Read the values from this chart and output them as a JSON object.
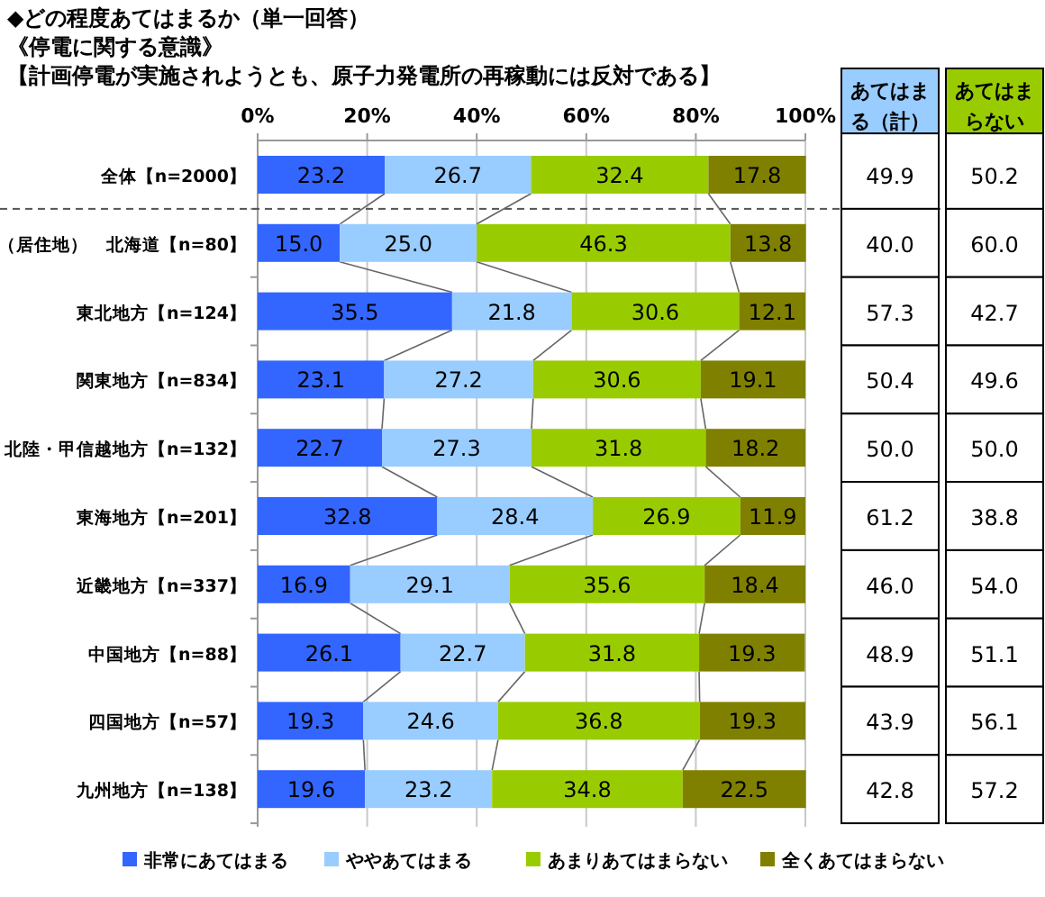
{
  "chart_data": {
    "type": "bar",
    "orientation": "horizontal",
    "stacked": true,
    "title": "◆どの程度あてはまるか（単一回答）",
    "subtitle": "《停電に関する意識》",
    "categories": [
      "全体【n=2000】",
      "（居住地）　北海道【n=80】",
      "東北地方【n=124】",
      "関東地方【n=834】",
      "北陸・甲信越地方【n=132】",
      "東海地方【n=201】",
      "近畿地方【n=337】",
      "中国地方【n=88】",
      "四国地方【n=57】",
      "九州地方【n=138】"
    ],
    "series": [
      {
        "name": "非常にあてはまる",
        "color": "#3366ff",
        "values": [
          23.2,
          15.0,
          35.5,
          23.1,
          22.7,
          32.8,
          16.9,
          26.1,
          19.3,
          19.6
        ],
        "value_labels": [
          "23.2",
          "15.0",
          "35.5",
          "23.1",
          "22.7",
          "32.8",
          "16.9",
          "26.1",
          "19.3",
          "19.6"
        ]
      },
      {
        "name": "ややあてはまる",
        "color": "#99ccff",
        "values": [
          26.7,
          25.0,
          21.8,
          27.2,
          27.3,
          28.4,
          29.1,
          22.7,
          24.6,
          23.2
        ],
        "value_labels": [
          "26.7",
          "25.0",
          "21.8",
          "27.2",
          "27.3",
          "28.4",
          "29.1",
          "22.7",
          "24.6",
          "23.2"
        ]
      },
      {
        "name": "あまりあてはまらない",
        "color": "#99cc00",
        "values": [
          32.4,
          46.3,
          30.6,
          30.6,
          31.8,
          26.9,
          35.6,
          31.8,
          36.8,
          34.8
        ]
      },
      {
        "name": "全くあてはまらない",
        "color": "#808000",
        "values": [
          17.8,
          13.8,
          12.1,
          19.1,
          18.2,
          11.9,
          18.4,
          19.3,
          19.3,
          22.5
        ]
      }
    ],
    "xlim": [
      0,
      100
    ],
    "xticks": [
      {
        "value": 0,
        "label": "0%"
      },
      {
        "value": 20,
        "label": "20%"
      },
      {
        "value": 40,
        "label": "40%"
      },
      {
        "value": 60,
        "label": "60%"
      },
      {
        "value": 80,
        "label": "80%"
      },
      {
        "value": 100,
        "label": "100%"
      }
    ],
    "grid": "x",
    "data_labels": true,
    "legend": "bottom",
    "annotations": [
      "【計画停電が実施されようとも、原子力発電所の再稼動には反対である】",
      "あてはまる（計）",
      "あてはまらない（計）",
      "49.9",
      "50.2",
      "40.0",
      "60.0",
      "57.3",
      "42.7",
      "50.4",
      "49.6",
      "50.0",
      "50.0",
      "61.2",
      "38.8",
      "46.0",
      "54.0",
      "48.9",
      "51.1",
      "43.9",
      "56.1",
      "42.8",
      "57.2"
    ]
  }
}
